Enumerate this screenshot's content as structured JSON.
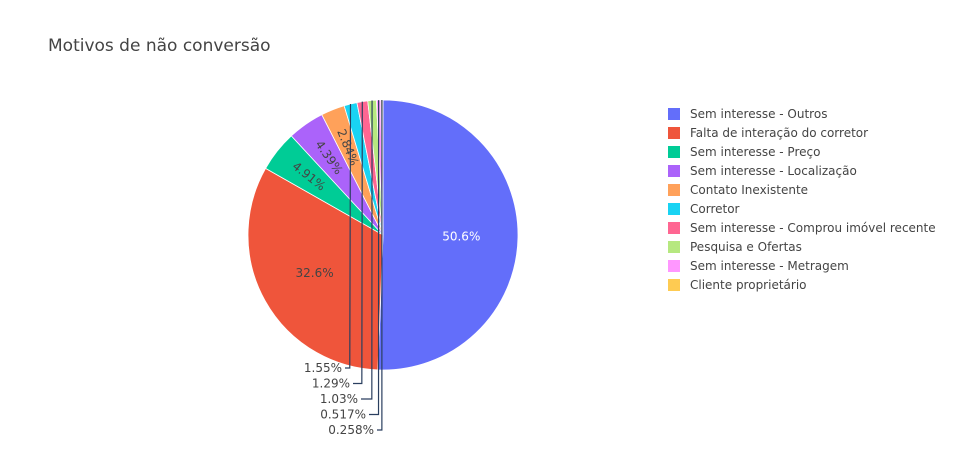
{
  "chart_data": {
    "type": "pie",
    "title": "Motivos de não conversão",
    "legend_placement": "right",
    "direction": "clockwise",
    "slices": [
      {
        "label": "Sem interesse - Outros",
        "value": 50.6,
        "display": "50.6%",
        "color": "#636efa",
        "label_position": "inside",
        "label_color": "#ffffff"
      },
      {
        "label": "Falta de interação do corretor",
        "value": 32.6,
        "display": "32.6%",
        "color": "#EF553B",
        "label_position": "inside",
        "label_color": "#444444"
      },
      {
        "label": "Sem interesse - Preço",
        "value": 4.91,
        "display": "4.91%",
        "color": "#00cc96",
        "label_position": "inside",
        "label_color": "#444444"
      },
      {
        "label": "Sem interesse - Localização",
        "value": 4.39,
        "display": "4.39%",
        "color": "#ab63fa",
        "label_position": "inside",
        "label_color": "#444444"
      },
      {
        "label": "Contato Inexistente",
        "value": 2.84,
        "display": "2.84%",
        "color": "#FFA15A",
        "label_position": "inside",
        "label_color": "#444444"
      },
      {
        "label": "Corretor",
        "value": 1.55,
        "display": "1.55%",
        "color": "#19d3f3",
        "label_position": "outside",
        "label_color": "#444444"
      },
      {
        "label": "Sem interesse - Comprou imóvel recente",
        "value": 1.29,
        "display": "1.29%",
        "color": "#FF6692",
        "label_position": "outside",
        "label_color": "#444444"
      },
      {
        "label": "Pesquisa e Ofertas",
        "value": 1.03,
        "display": "1.03%",
        "color": "#B6E880",
        "label_position": "outside",
        "label_color": "#444444"
      },
      {
        "label": "Sem interesse - Metragem",
        "value": 0.517,
        "display": "0.517%",
        "color": "#FF97FF",
        "label_position": "outside",
        "label_color": "#444444"
      },
      {
        "label": "Cliente proprietário",
        "value": 0.258,
        "display": "0.258%",
        "color": "#FECB52",
        "label_position": "outside",
        "label_color": "#444444"
      }
    ]
  }
}
